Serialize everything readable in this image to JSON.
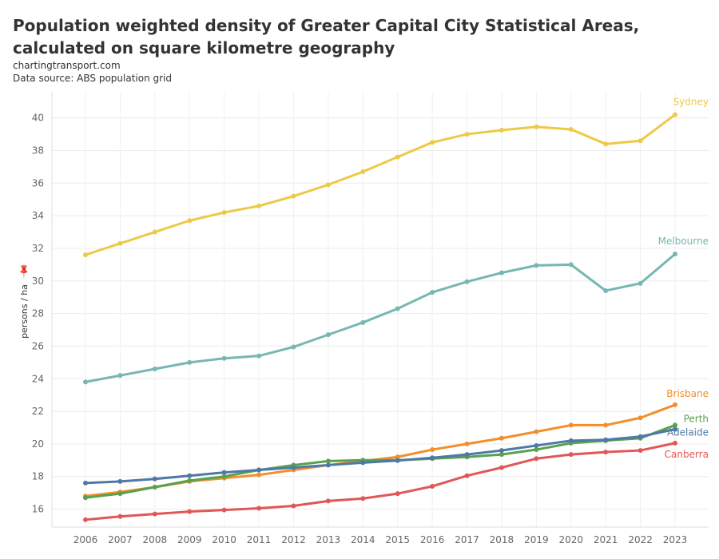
{
  "title": "Population weighted density of Greater Capital City Statistical Areas, calculated on square kilometre geography",
  "subtitle1": "chartingtransport.com",
  "subtitle2": "Data source: ABS population grid",
  "chart_data": {
    "type": "line",
    "title": "Population weighted density of Greater Capital City Statistical Areas, calculated on square kilometre geography",
    "xlabel": "",
    "ylabel": "persons / ha",
    "ylim": [
      14.9,
      41.6
    ],
    "grid": true,
    "legend": "end-of-line labels",
    "yticks": [
      16,
      18,
      20,
      22,
      24,
      26,
      28,
      30,
      32,
      34,
      36,
      38,
      40
    ],
    "x": [
      2006,
      2007,
      2008,
      2009,
      2010,
      2011,
      2012,
      2013,
      2014,
      2015,
      2016,
      2017,
      2018,
      2019,
      2020,
      2021,
      2022,
      2023
    ],
    "series": [
      {
        "name": "Sydney",
        "color": "#EDC948",
        "values": [
          31.6,
          32.3,
          33.0,
          33.7,
          34.2,
          34.6,
          35.2,
          35.9,
          36.7,
          37.6,
          38.5,
          39.0,
          39.25,
          39.45,
          39.3,
          38.4,
          38.6,
          40.2
        ]
      },
      {
        "name": "Melbourne",
        "color": "#76B7B2",
        "values": [
          23.8,
          24.2,
          24.6,
          25.0,
          25.25,
          25.4,
          25.95,
          26.7,
          27.45,
          28.3,
          29.3,
          29.95,
          30.5,
          30.95,
          31.0,
          29.4,
          29.85,
          31.65
        ]
      },
      {
        "name": "Brisbane",
        "color": "#F28E2B",
        "values": [
          16.8,
          17.05,
          17.35,
          17.7,
          17.9,
          18.1,
          18.4,
          18.7,
          18.95,
          19.2,
          19.65,
          20.0,
          20.35,
          20.75,
          21.15,
          21.15,
          21.6,
          22.4
        ]
      },
      {
        "name": "Perth",
        "color": "#59A14F",
        "values": [
          16.7,
          16.95,
          17.35,
          17.75,
          18.0,
          18.4,
          18.7,
          18.95,
          19.0,
          19.0,
          19.1,
          19.2,
          19.35,
          19.65,
          20.05,
          20.2,
          20.35,
          21.15
        ]
      },
      {
        "name": "Adelaide",
        "color": "#4E79A7",
        "values": [
          17.6,
          17.7,
          17.85,
          18.05,
          18.25,
          18.4,
          18.55,
          18.7,
          18.85,
          18.98,
          19.15,
          19.35,
          19.6,
          19.9,
          20.2,
          20.25,
          20.45,
          20.9
        ]
      },
      {
        "name": "Canberra",
        "color": "#E15759",
        "values": [
          15.35,
          15.55,
          15.7,
          15.85,
          15.95,
          16.05,
          16.2,
          16.5,
          16.65,
          16.95,
          17.4,
          18.05,
          18.55,
          19.1,
          19.35,
          19.5,
          19.6,
          20.05
        ]
      }
    ]
  }
}
